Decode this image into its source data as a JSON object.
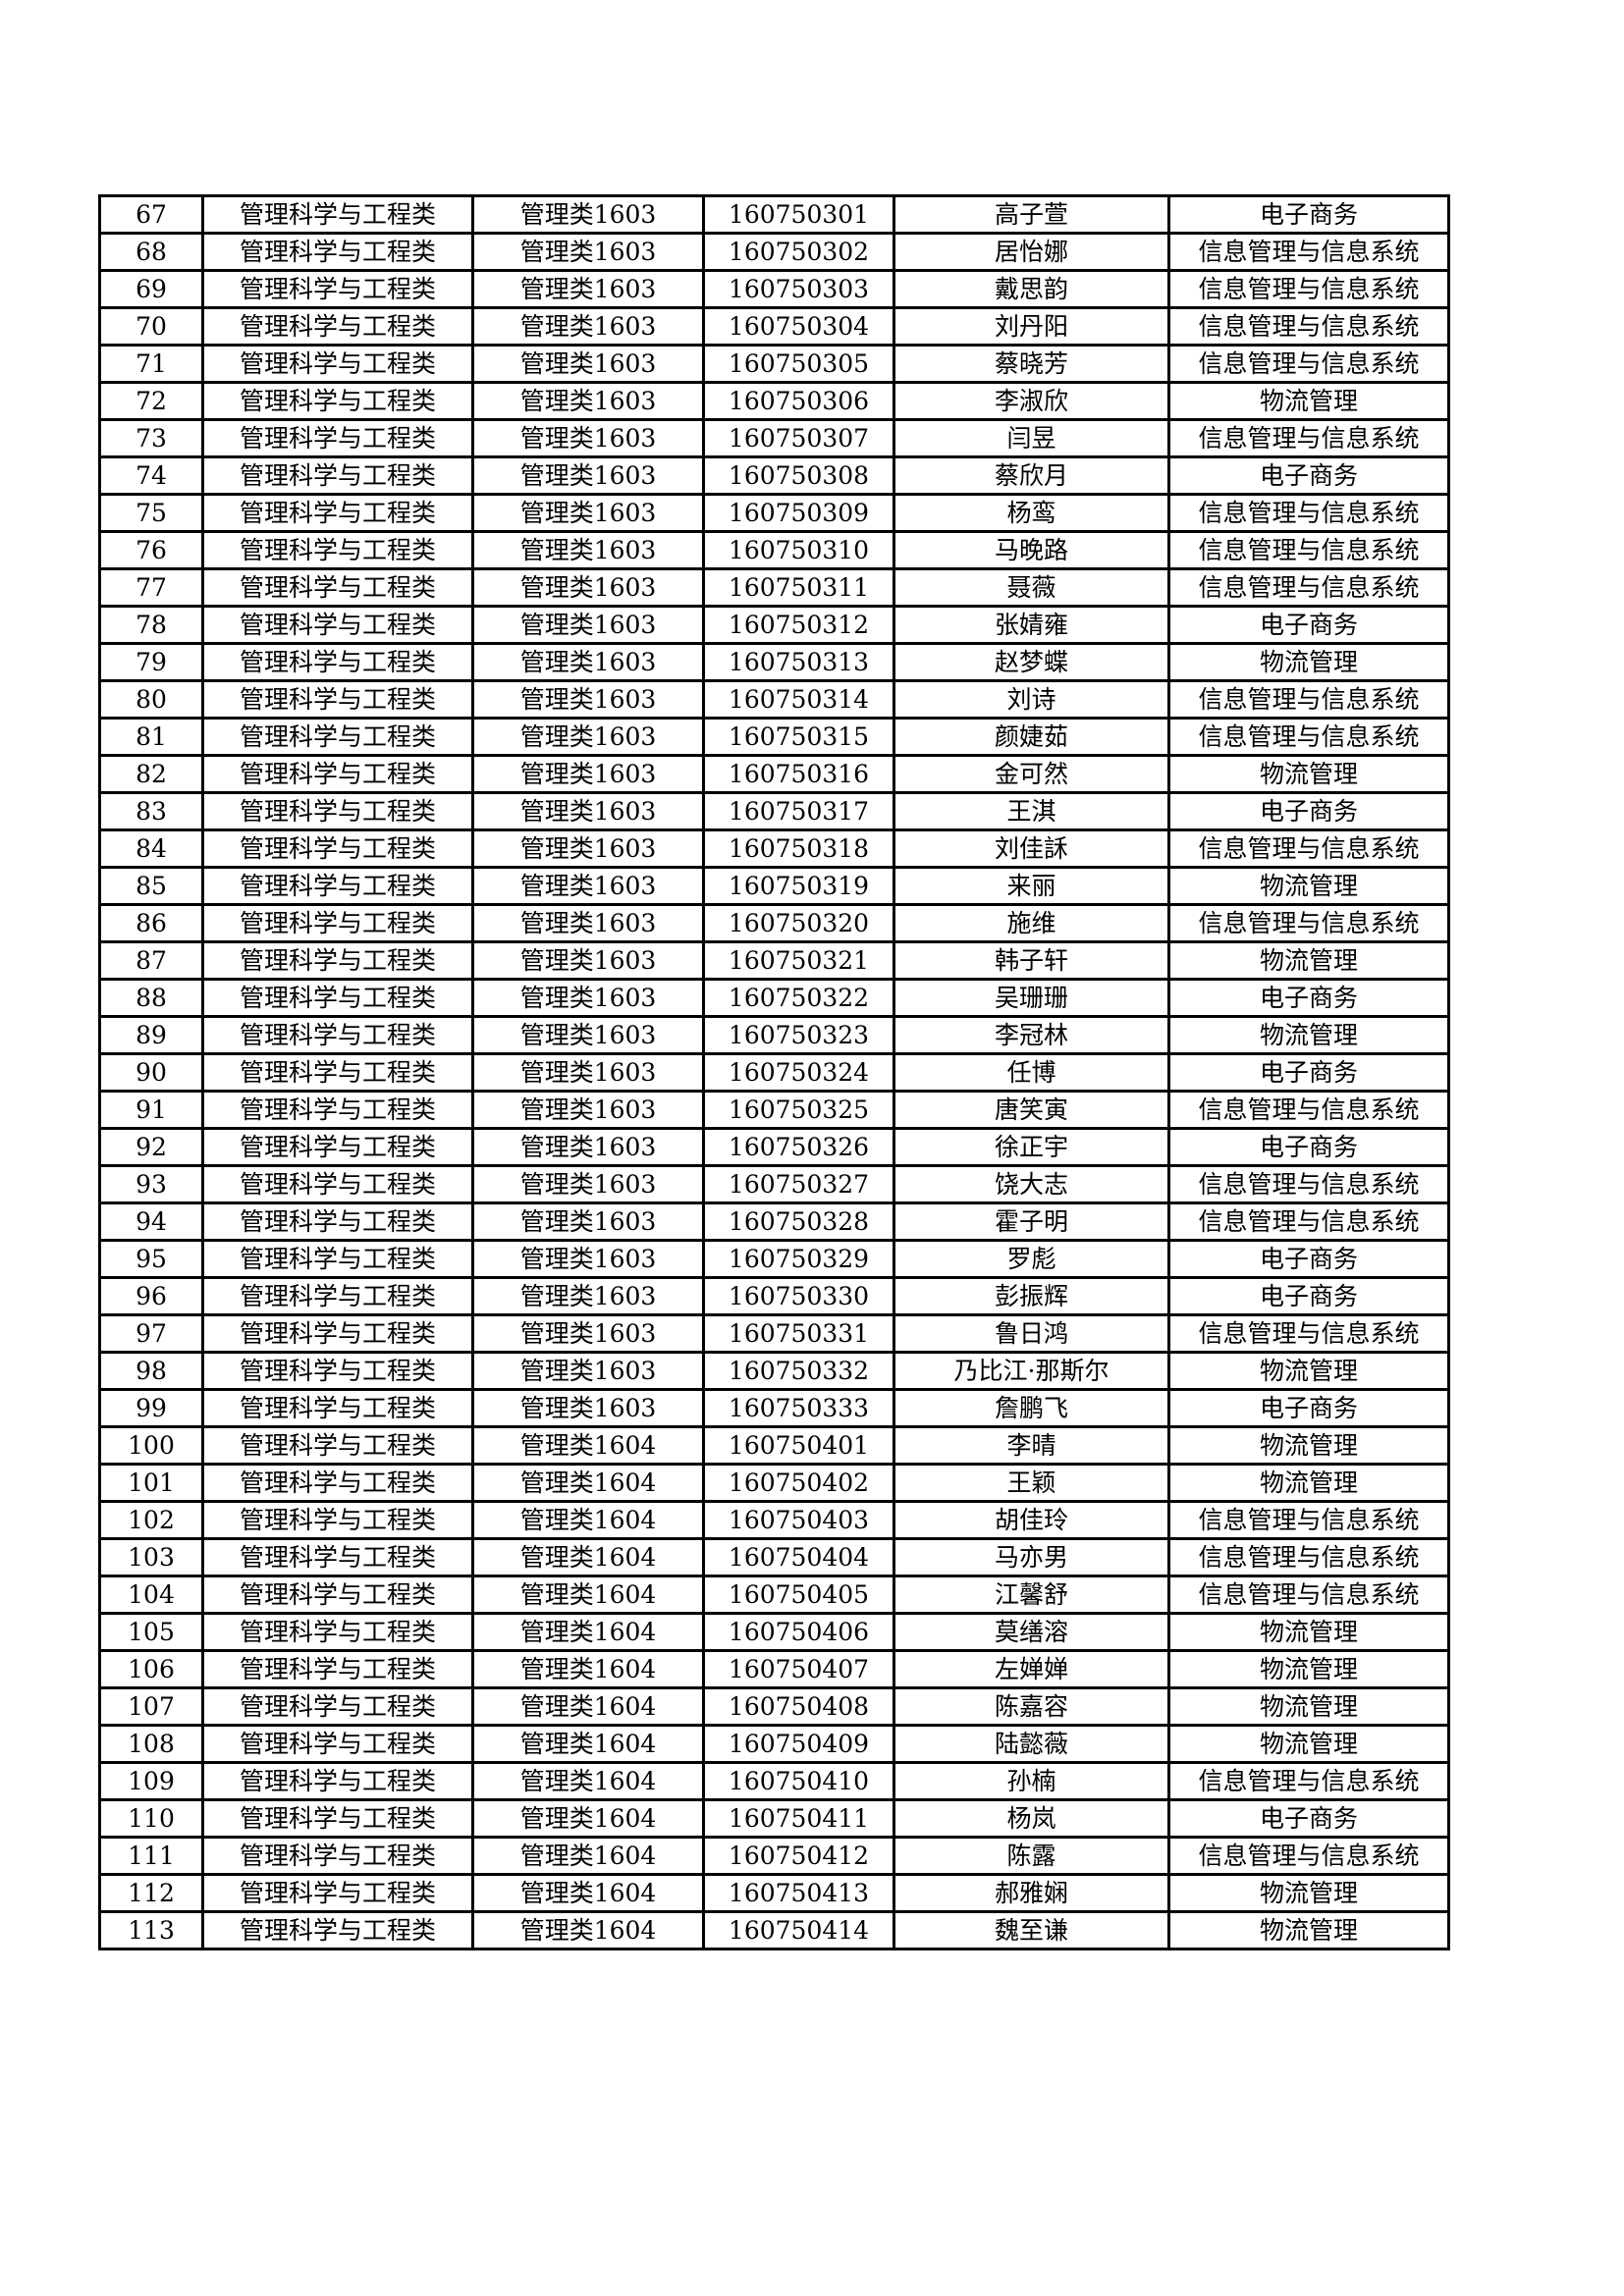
{
  "rows": [
    [
      "67",
      "管理科学与工程类",
      "管理类1603",
      "160750301",
      "高子萱",
      "电子商务"
    ],
    [
      "68",
      "管理科学与工程类",
      "管理类1603",
      "160750302",
      "居怡娜",
      "信息管理与信息系统"
    ],
    [
      "69",
      "管理科学与工程类",
      "管理类1603",
      "160750303",
      "戴思韵",
      "信息管理与信息系统"
    ],
    [
      "70",
      "管理科学与工程类",
      "管理类1603",
      "160750304",
      "刘丹阳",
      "信息管理与信息系统"
    ],
    [
      "71",
      "管理科学与工程类",
      "管理类1603",
      "160750305",
      "蔡晓芳",
      "信息管理与信息系统"
    ],
    [
      "72",
      "管理科学与工程类",
      "管理类1603",
      "160750306",
      "李淑欣",
      "物流管理"
    ],
    [
      "73",
      "管理科学与工程类",
      "管理类1603",
      "160750307",
      "闫昱",
      "信息管理与信息系统"
    ],
    [
      "74",
      "管理科学与工程类",
      "管理类1603",
      "160750308",
      "蔡欣月",
      "电子商务"
    ],
    [
      "75",
      "管理科学与工程类",
      "管理类1603",
      "160750309",
      "杨鸾",
      "信息管理与信息系统"
    ],
    [
      "76",
      "管理科学与工程类",
      "管理类1603",
      "160750310",
      "马晚路",
      "信息管理与信息系统"
    ],
    [
      "77",
      "管理科学与工程类",
      "管理类1603",
      "160750311",
      "聂薇",
      "信息管理与信息系统"
    ],
    [
      "78",
      "管理科学与工程类",
      "管理类1603",
      "160750312",
      "张婧雍",
      "电子商务"
    ],
    [
      "79",
      "管理科学与工程类",
      "管理类1603",
      "160750313",
      "赵梦蝶",
      "物流管理"
    ],
    [
      "80",
      "管理科学与工程类",
      "管理类1603",
      "160750314",
      "刘诗",
      "信息管理与信息系统"
    ],
    [
      "81",
      "管理科学与工程类",
      "管理类1603",
      "160750315",
      "颜婕茹",
      "信息管理与信息系统"
    ],
    [
      "82",
      "管理科学与工程类",
      "管理类1603",
      "160750316",
      "金可然",
      "物流管理"
    ],
    [
      "83",
      "管理科学与工程类",
      "管理类1603",
      "160750317",
      "王淇",
      "电子商务"
    ],
    [
      "84",
      "管理科学与工程类",
      "管理类1603",
      "160750318",
      "刘佳訸",
      "信息管理与信息系统"
    ],
    [
      "85",
      "管理科学与工程类",
      "管理类1603",
      "160750319",
      "来丽",
      "物流管理"
    ],
    [
      "86",
      "管理科学与工程类",
      "管理类1603",
      "160750320",
      "施维",
      "信息管理与信息系统"
    ],
    [
      "87",
      "管理科学与工程类",
      "管理类1603",
      "160750321",
      "韩子轩",
      "物流管理"
    ],
    [
      "88",
      "管理科学与工程类",
      "管理类1603",
      "160750322",
      "吴珊珊",
      "电子商务"
    ],
    [
      "89",
      "管理科学与工程类",
      "管理类1603",
      "160750323",
      "李冠林",
      "物流管理"
    ],
    [
      "90",
      "管理科学与工程类",
      "管理类1603",
      "160750324",
      "任博",
      "电子商务"
    ],
    [
      "91",
      "管理科学与工程类",
      "管理类1603",
      "160750325",
      "唐笑寅",
      "信息管理与信息系统"
    ],
    [
      "92",
      "管理科学与工程类",
      "管理类1603",
      "160750326",
      "徐正宇",
      "电子商务"
    ],
    [
      "93",
      "管理科学与工程类",
      "管理类1603",
      "160750327",
      "饶大志",
      "信息管理与信息系统"
    ],
    [
      "94",
      "管理科学与工程类",
      "管理类1603",
      "160750328",
      "霍子明",
      "信息管理与信息系统"
    ],
    [
      "95",
      "管理科学与工程类",
      "管理类1603",
      "160750329",
      "罗彪",
      "电子商务"
    ],
    [
      "96",
      "管理科学与工程类",
      "管理类1603",
      "160750330",
      "彭振辉",
      "电子商务"
    ],
    [
      "97",
      "管理科学与工程类",
      "管理类1603",
      "160750331",
      "鲁日鸿",
      "信息管理与信息系统"
    ],
    [
      "98",
      "管理科学与工程类",
      "管理类1603",
      "160750332",
      "乃比江·那斯尔",
      "物流管理"
    ],
    [
      "99",
      "管理科学与工程类",
      "管理类1603",
      "160750333",
      "詹鹏飞",
      "电子商务"
    ],
    [
      "100",
      "管理科学与工程类",
      "管理类1604",
      "160750401",
      "李晴",
      "物流管理"
    ],
    [
      "101",
      "管理科学与工程类",
      "管理类1604",
      "160750402",
      "王颖",
      "物流管理"
    ],
    [
      "102",
      "管理科学与工程类",
      "管理类1604",
      "160750403",
      "胡佳玲",
      "信息管理与信息系统"
    ],
    [
      "103",
      "管理科学与工程类",
      "管理类1604",
      "160750404",
      "马亦男",
      "信息管理与信息系统"
    ],
    [
      "104",
      "管理科学与工程类",
      "管理类1604",
      "160750405",
      "江馨舒",
      "信息管理与信息系统"
    ],
    [
      "105",
      "管理科学与工程类",
      "管理类1604",
      "160750406",
      "莫缮溶",
      "物流管理"
    ],
    [
      "106",
      "管理科学与工程类",
      "管理类1604",
      "160750407",
      "左婵婵",
      "物流管理"
    ],
    [
      "107",
      "管理科学与工程类",
      "管理类1604",
      "160750408",
      "陈嘉容",
      "物流管理"
    ],
    [
      "108",
      "管理科学与工程类",
      "管理类1604",
      "160750409",
      "陆懿薇",
      "物流管理"
    ],
    [
      "109",
      "管理科学与工程类",
      "管理类1604",
      "160750410",
      "孙楠",
      "信息管理与信息系统"
    ],
    [
      "110",
      "管理科学与工程类",
      "管理类1604",
      "160750411",
      "杨岚",
      "电子商务"
    ],
    [
      "111",
      "管理科学与工程类",
      "管理类1604",
      "160750412",
      "陈露",
      "信息管理与信息系统"
    ],
    [
      "112",
      "管理科学与工程类",
      "管理类1604",
      "160750413",
      "郝雅娴",
      "物流管理"
    ],
    [
      "113",
      "管理科学与工程类",
      "管理类1604",
      "160750414",
      "魏至谦",
      "物流管理"
    ]
  ]
}
